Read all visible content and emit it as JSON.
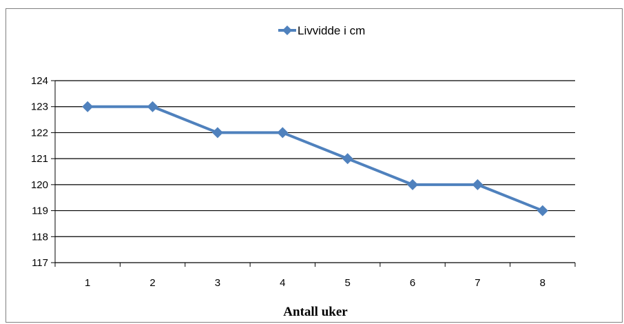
{
  "chart_data": {
    "type": "line",
    "categories": [
      "1",
      "2",
      "3",
      "4",
      "5",
      "6",
      "7",
      "8"
    ],
    "series": [
      {
        "name": "Livvidde i cm",
        "values": [
          123,
          123,
          122,
          122,
          121,
          120,
          120,
          119
        ],
        "color": "#4f81bd",
        "marker": "diamond"
      }
    ],
    "title": "",
    "xlabel": "Antall uker",
    "ylabel": "",
    "ylim": [
      117,
      124
    ],
    "ytick_step": 1,
    "grid": true,
    "legend_position": "top-center"
  }
}
